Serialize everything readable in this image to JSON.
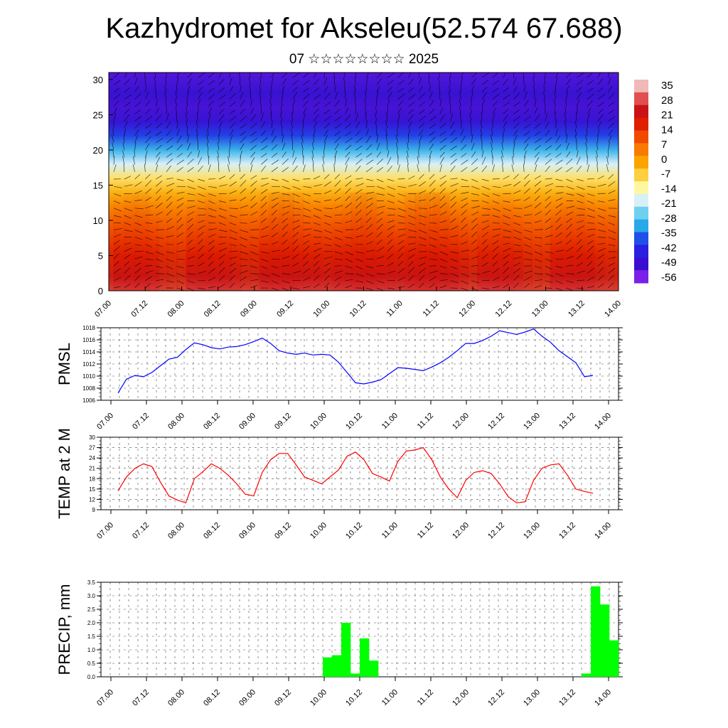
{
  "header": {
    "title": "Kazhydromet for Akseleu(52.574 67.688)",
    "subtitle": "07 ☆☆☆☆☆☆☆☆ 2025"
  },
  "time_ticks": [
    "07.00",
    "07.12",
    "08.00",
    "08.12",
    "09.00",
    "09.12",
    "10.00",
    "10.12",
    "11.00",
    "11.12",
    "12.00",
    "12.12",
    "13.00",
    "13.12",
    "14.00"
  ],
  "chart_data": [
    {
      "type": "heatmap",
      "title": "",
      "ylim": [
        0,
        31
      ],
      "yticks": [
        0,
        5,
        10,
        15,
        20,
        25,
        30
      ],
      "colorbar_labels": [
        "35",
        "28",
        "21",
        "14",
        "7",
        "0",
        "-7",
        "-14",
        "-21",
        "-28",
        "-35",
        "-42",
        "-49",
        "-56"
      ],
      "colorbar_colors": [
        "#f2b8b8",
        "#e05050",
        "#c81414",
        "#e01e00",
        "#f04a00",
        "#f87a00",
        "#fba400",
        "#fcd040",
        "#fff7a0",
        "#d8f0f8",
        "#70d0f0",
        "#28a8e8",
        "#2050e8",
        "#2a20e0",
        "#3a10d0",
        "#7a20e8"
      ],
      "temperature_profile": [
        {
          "height": 0,
          "value": 26
        },
        {
          "height": 2,
          "value": 22
        },
        {
          "height": 5,
          "value": 17
        },
        {
          "height": 8,
          "value": 11
        },
        {
          "height": 10,
          "value": 7
        },
        {
          "height": 12,
          "value": 2
        },
        {
          "height": 14,
          "value": -5
        },
        {
          "height": 16,
          "value": -12
        },
        {
          "height": 18,
          "value": -22
        },
        {
          "height": 20,
          "value": -33
        },
        {
          "height": 22,
          "value": -43
        },
        {
          "height": 24,
          "value": -52
        },
        {
          "height": 26,
          "value": -55
        },
        {
          "height": 28,
          "value": -53
        },
        {
          "height": 31,
          "value": -56
        }
      ]
    },
    {
      "type": "line",
      "ylabel": "PMSL",
      "ylim": [
        1006,
        1018
      ],
      "yticks": [
        1006,
        1008,
        1010,
        1012,
        1014,
        1016,
        1018
      ],
      "grid": true,
      "color": "#0000ff",
      "values": [
        1007.2,
        1009.5,
        1010.1,
        1009.9,
        1010.6,
        1011.7,
        1012.8,
        1013.1,
        1014.4,
        1015.5,
        1015.2,
        1014.7,
        1014.5,
        1014.8,
        1014.9,
        1015.2,
        1015.7,
        1016.3,
        1015.4,
        1014.2,
        1013.8,
        1013.6,
        1013.8,
        1013.5,
        1013.6,
        1013.5,
        1012.3,
        1010.6,
        1008.9,
        1008.7,
        1009.0,
        1009.4,
        1010.4,
        1011.4,
        1011.3,
        1011.1,
        1010.9,
        1011.5,
        1012.2,
        1013.1,
        1014.2,
        1015.4,
        1015.4,
        1015.9,
        1016.6,
        1017.5,
        1017.2,
        1016.9,
        1017.3,
        1017.8,
        1016.6,
        1015.6,
        1014.2,
        1013.2,
        1012.2,
        1009.9,
        1010.1
      ]
    },
    {
      "type": "line",
      "ylabel": "TEMP at 2 M",
      "ylim": [
        9,
        30
      ],
      "yticks": [
        9,
        12,
        15,
        18,
        21,
        24,
        27,
        30
      ],
      "grid": true,
      "color": "#ff0000",
      "values": [
        14.5,
        18.5,
        21.0,
        22.3,
        21.5,
        17.0,
        13.0,
        11.8,
        11.0,
        18.0,
        20.0,
        22.3,
        21.0,
        19.0,
        16.5,
        13.5,
        13.0,
        19.8,
        23.5,
        25.3,
        25.3,
        22.0,
        18.5,
        17.5,
        16.5,
        18.5,
        20.5,
        24.5,
        25.7,
        23.5,
        19.5,
        18.5,
        17.3,
        23.0,
        26.0,
        26.3,
        27.0,
        23.5,
        18.5,
        15.0,
        12.5,
        17.5,
        19.8,
        20.3,
        19.5,
        16.5,
        12.8,
        11.0,
        11.3,
        17.5,
        21.0,
        22.0,
        22.3,
        19.0,
        15.0,
        14.3,
        13.8
      ]
    },
    {
      "type": "bar",
      "ylabel": "PRECIP, mm",
      "ylim": [
        0,
        3.5
      ],
      "yticks": [
        "0.0",
        "0.5",
        "1.0",
        "1.5",
        "2.0",
        "2.5",
        "3.0",
        "3.5"
      ],
      "grid": true,
      "color": "#00ff00",
      "values": [
        0,
        0,
        0,
        0,
        0,
        0,
        0,
        0,
        0,
        0,
        0,
        0,
        0,
        0,
        0,
        0,
        0,
        0,
        0,
        0,
        0,
        0,
        0,
        0,
        0.72,
        0.8,
        2.0,
        0.12,
        1.42,
        0.6,
        0,
        0,
        0,
        0,
        0,
        0,
        0,
        0,
        0,
        0,
        0,
        0,
        0,
        0,
        0,
        0,
        0,
        0,
        0,
        0,
        0,
        0,
        0.12,
        3.35,
        2.68,
        1.35
      ]
    }
  ]
}
